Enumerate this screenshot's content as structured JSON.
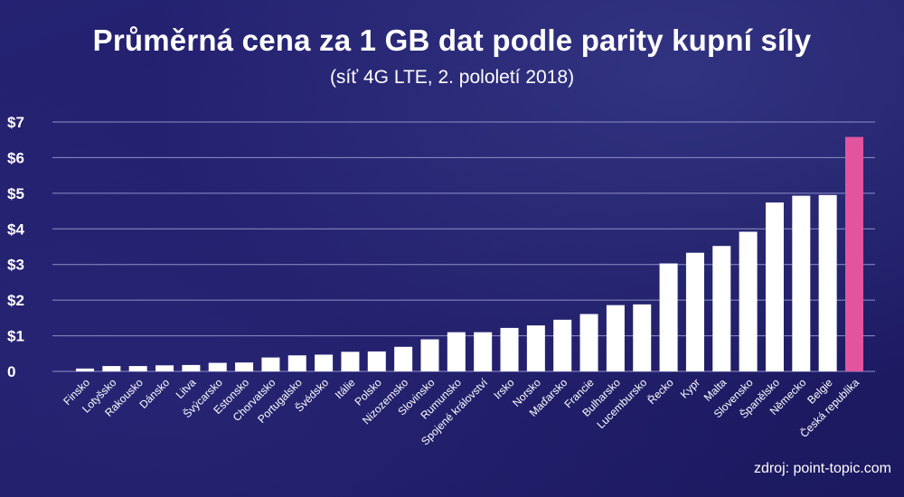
{
  "chart_data": {
    "type": "bar",
    "title": "Průměrná cena za 1 GB dat podle parity kupní síly",
    "subtitle": "(síť 4G LTE, 2. pololetí 2018)",
    "source": "zdroj: point-topic.com",
    "xlabel": "",
    "ylabel": "",
    "ylim": [
      0,
      7
    ],
    "y_ticks": [
      "0",
      "$1",
      "$2",
      "$3",
      "$4",
      "$5",
      "$6",
      "$7"
    ],
    "grid": true,
    "categories": [
      "Finsko",
      "Lotyšsko",
      "Rakousko",
      "Dánsko",
      "Litva",
      "Švýcarsko",
      "Estonsko",
      "Chorvatsko",
      "Portugalsko",
      "Švédsko",
      "Itálie",
      "Polsko",
      "Nizozemsko",
      "Slovinsko",
      "Rumunsko",
      "Spojené království",
      "Irsko",
      "Norsko",
      "Maďarsko",
      "Francie",
      "Bulharsko",
      "Lucembursko",
      "Řecko",
      "Kypr",
      "Malta",
      "Slovensko",
      "Španělsko",
      "Německo",
      "Belgie",
      "Česká republika"
    ],
    "values": [
      0.08,
      0.15,
      0.15,
      0.17,
      0.18,
      0.24,
      0.25,
      0.39,
      0.45,
      0.47,
      0.55,
      0.56,
      0.69,
      0.9,
      1.1,
      1.1,
      1.22,
      1.29,
      1.45,
      1.61,
      1.86,
      1.88,
      3.03,
      3.33,
      3.52,
      3.92,
      4.74,
      4.93,
      4.95,
      6.58
    ],
    "bar_color": "#ffffff",
    "highlight": {
      "category": "Česká republika",
      "color": "#e2559e"
    },
    "grid_color": "#8f8fc8"
  }
}
